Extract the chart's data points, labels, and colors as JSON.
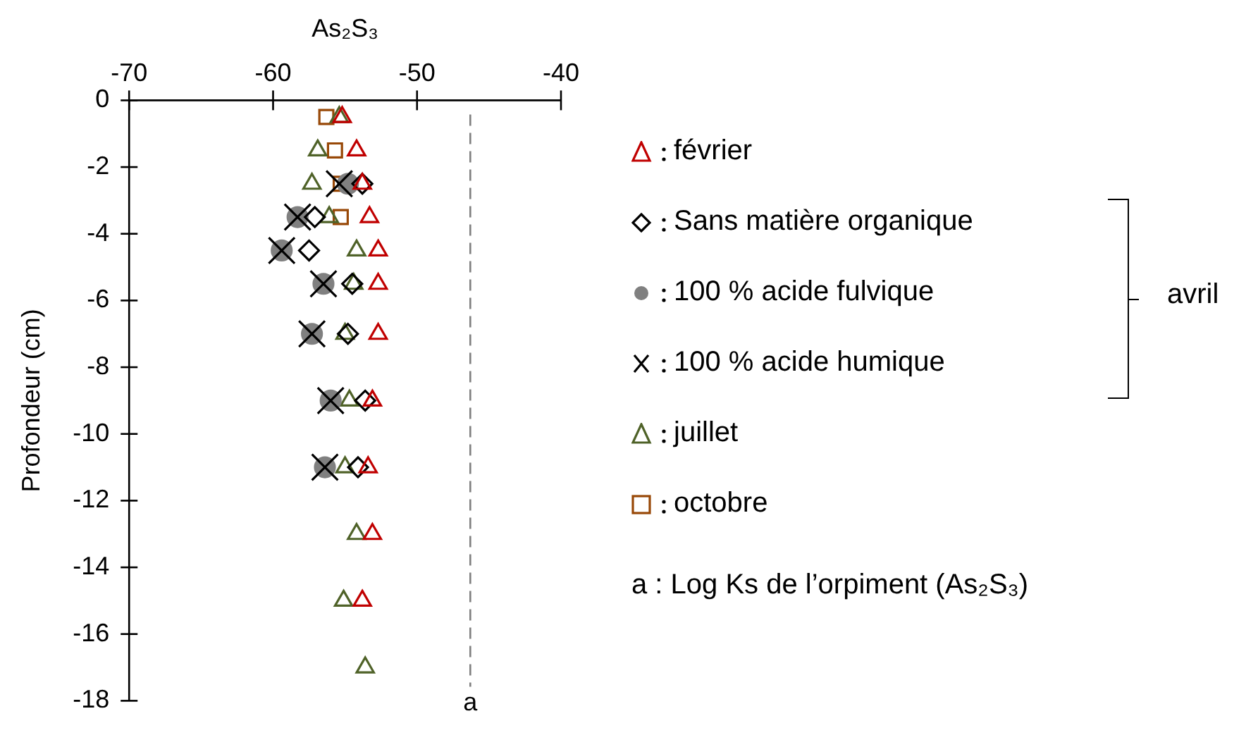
{
  "chart_data": {
    "type": "scatter",
    "xlabel": "As₂S₃",
    "ylabel": "Profondeur (cm)",
    "xlim": [
      -70,
      -40
    ],
    "xticks": [
      -70,
      -60,
      -50,
      -40
    ],
    "ylim": [
      -18,
      0
    ],
    "yticks": [
      0,
      -2,
      -4,
      -6,
      -8,
      -10,
      -12,
      -14,
      -16,
      -18
    ],
    "grid": false,
    "legend": "right",
    "series": [
      {
        "name": "février",
        "color": "#c00000",
        "marker": "triangle",
        "x": [
          -55.2,
          -54.2,
          -53.8,
          -53.3,
          -52.7,
          -52.7,
          -52.7,
          -53.1,
          -53.4,
          -53.1,
          -53.8
        ],
        "values": [
          -0.5,
          -1.5,
          -2.5,
          -3.5,
          -4.5,
          -5.5,
          -7,
          -9,
          -11,
          -13,
          -15
        ]
      },
      {
        "name": "Sans matière organique",
        "color": "#000000",
        "marker": "diamond",
        "x": [
          -53.8,
          -57.1,
          -57.5,
          -54.5,
          -54.8,
          -53.6,
          -54.1
        ],
        "values": [
          -2.5,
          -3.5,
          -4.5,
          -5.5,
          -7,
          -9,
          -11
        ]
      },
      {
        "name": "100 % acide fulvique",
        "color": "#808080",
        "marker": "circle",
        "x": [
          -54.8,
          -58.3,
          -59.4,
          -56.5,
          -57.3,
          -56,
          -56.4
        ],
        "values": [
          -2.5,
          -3.5,
          -4.5,
          -5.5,
          -7,
          -9,
          -11
        ]
      },
      {
        "name": "100 % acide humique",
        "color": "#000000",
        "marker": "cross",
        "x": [
          -55.4,
          -58.3,
          -59.4,
          -56.5,
          -57.3,
          -56,
          -56.4
        ],
        "values": [
          -2.5,
          -3.5,
          -4.5,
          -5.5,
          -7,
          -9,
          -11
        ]
      },
      {
        "name": "juillet",
        "color": "#4f6228",
        "marker": "triangle",
        "x": [
          -55.4,
          -56.9,
          -57.3,
          -56.1,
          -54.2,
          -54.4,
          -55,
          -54.7,
          -55,
          -54.2,
          -55.1,
          -53.6
        ],
        "values": [
          -0.5,
          -1.5,
          -2.5,
          -3.5,
          -4.5,
          -5.5,
          -7,
          -9,
          -11,
          -13,
          -15,
          -17
        ]
      },
      {
        "name": "octobre",
        "color": "#984807",
        "marker": "square",
        "x": [
          -56.3,
          -55.7,
          -55.3,
          -55.3
        ],
        "values": [
          -0.5,
          -1.5,
          -2.5,
          -3.5
        ]
      }
    ],
    "ref_lines": [
      {
        "axis": "x",
        "value": -46.3,
        "label": "a",
        "color": "#808080",
        "line_style": "dashed"
      }
    ],
    "annotations": [
      "avril",
      "a : Log Ks de l’orpiment (As₂S₃)"
    ]
  }
}
